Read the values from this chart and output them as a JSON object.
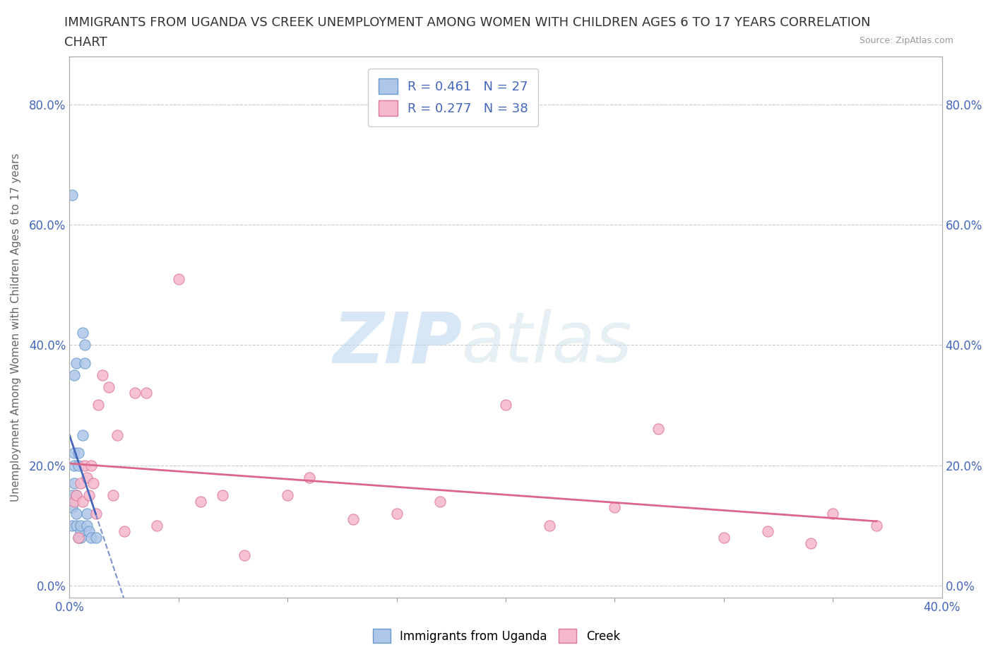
{
  "title_line1": "IMMIGRANTS FROM UGANDA VS CREEK UNEMPLOYMENT AMONG WOMEN WITH CHILDREN AGES 6 TO 17 YEARS CORRELATION",
  "title_line2": "CHART",
  "source": "Source: ZipAtlas.com",
  "ylabel": "Unemployment Among Women with Children Ages 6 to 17 years",
  "xlim": [
    0.0,
    0.4
  ],
  "ylim": [
    -0.02,
    0.88
  ],
  "xtick_positions": [
    0.0,
    0.4
  ],
  "xtick_labels": [
    "0.0%",
    "40.0%"
  ],
  "ytick_positions": [
    0.0,
    0.2,
    0.4,
    0.6,
    0.8
  ],
  "ytick_labels": [
    "0.0%",
    "20.0%",
    "40.0%",
    "60.0%",
    "80.0%"
  ],
  "background_color": "#ffffff",
  "grid_color": "#cccccc",
  "watermark_zip": "ZIP",
  "watermark_atlas": "atlas",
  "uganda_color": "#aec6e8",
  "uganda_edge_color": "#6699cc",
  "creek_color": "#f5b8cc",
  "creek_edge_color": "#dd7799",
  "uganda_R": 0.461,
  "uganda_N": 27,
  "creek_R": 0.277,
  "creek_N": 38,
  "uganda_line_color": "#4466bb",
  "creek_line_color": "#dd6688",
  "uganda_x": [
    0.001,
    0.001,
    0.001,
    0.002,
    0.002,
    0.002,
    0.002,
    0.003,
    0.003,
    0.003,
    0.003,
    0.004,
    0.004,
    0.004,
    0.005,
    0.005,
    0.005,
    0.006,
    0.006,
    0.007,
    0.007,
    0.008,
    0.008,
    0.009,
    0.01,
    0.012,
    0.001
  ],
  "uganda_y": [
    0.1,
    0.13,
    0.15,
    0.17,
    0.2,
    0.22,
    0.35,
    0.37,
    0.1,
    0.12,
    0.15,
    0.2,
    0.22,
    0.08,
    0.08,
    0.09,
    0.1,
    0.42,
    0.25,
    0.37,
    0.4,
    0.1,
    0.12,
    0.09,
    0.08,
    0.08,
    0.65
  ],
  "creek_x": [
    0.002,
    0.003,
    0.004,
    0.005,
    0.006,
    0.007,
    0.008,
    0.009,
    0.01,
    0.011,
    0.012,
    0.013,
    0.015,
    0.018,
    0.02,
    0.022,
    0.025,
    0.03,
    0.035,
    0.04,
    0.05,
    0.06,
    0.07,
    0.08,
    0.1,
    0.11,
    0.13,
    0.15,
    0.17,
    0.2,
    0.22,
    0.25,
    0.27,
    0.3,
    0.32,
    0.34,
    0.35,
    0.37
  ],
  "creek_y": [
    0.14,
    0.15,
    0.08,
    0.17,
    0.14,
    0.2,
    0.18,
    0.15,
    0.2,
    0.17,
    0.12,
    0.3,
    0.35,
    0.33,
    0.15,
    0.25,
    0.09,
    0.32,
    0.32,
    0.1,
    0.51,
    0.14,
    0.15,
    0.05,
    0.15,
    0.18,
    0.11,
    0.12,
    0.14,
    0.3,
    0.1,
    0.13,
    0.26,
    0.08,
    0.09,
    0.07,
    0.12,
    0.1
  ],
  "legend_label_uganda": "Immigrants from Uganda",
  "legend_label_creek": "Creek",
  "title_color": "#333333",
  "title_fontsize": 13,
  "axis_label_color": "#666666",
  "tick_color": "#4466bb",
  "source_color": "#999999",
  "legend_text_color": "#4466bb"
}
